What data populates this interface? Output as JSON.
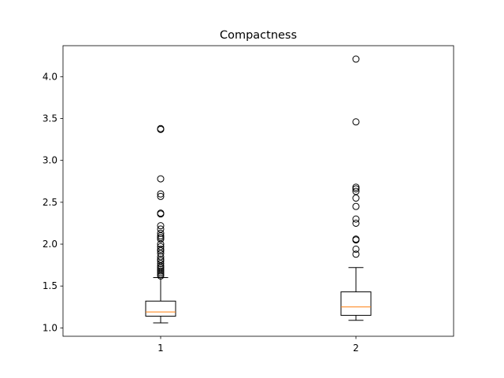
{
  "chart_data": {
    "type": "boxplot",
    "title": "Compactness",
    "xlabel": "",
    "ylabel": "",
    "categories": [
      "1",
      "2"
    ],
    "ylim": [
      0.9,
      4.37
    ],
    "yticks": [
      1.0,
      1.5,
      2.0,
      2.5,
      3.0,
      3.5,
      4.0
    ],
    "ytick_labels": [
      "1.0",
      "1.5",
      "2.0",
      "2.5",
      "3.0",
      "3.5",
      "4.0"
    ],
    "grid": false,
    "colors": {
      "box": "#000000",
      "median": "#ff7f0e",
      "flier": "#000000"
    },
    "boxes": [
      {
        "label": "1",
        "whisker_low": 1.06,
        "q1": 1.14,
        "median": 1.19,
        "q3": 1.32,
        "whisker_high": 1.6,
        "fliers": [
          3.38,
          3.37,
          2.78,
          2.6,
          2.57,
          2.37,
          2.36,
          2.22,
          2.18,
          2.13,
          2.1,
          2.08,
          2.06,
          2.0,
          1.97,
          1.94,
          1.92,
          1.89,
          1.85,
          1.82,
          1.8,
          1.77,
          1.74,
          1.72,
          1.7,
          1.68,
          1.66,
          1.64,
          1.62
        ]
      },
      {
        "label": "2",
        "whisker_low": 1.09,
        "q1": 1.15,
        "median": 1.25,
        "q3": 1.43,
        "whisker_high": 1.72,
        "fliers": [
          4.21,
          3.46,
          2.68,
          2.66,
          2.63,
          2.55,
          2.45,
          2.3,
          2.25,
          2.06,
          2.05,
          1.94,
          1.88
        ]
      }
    ]
  }
}
